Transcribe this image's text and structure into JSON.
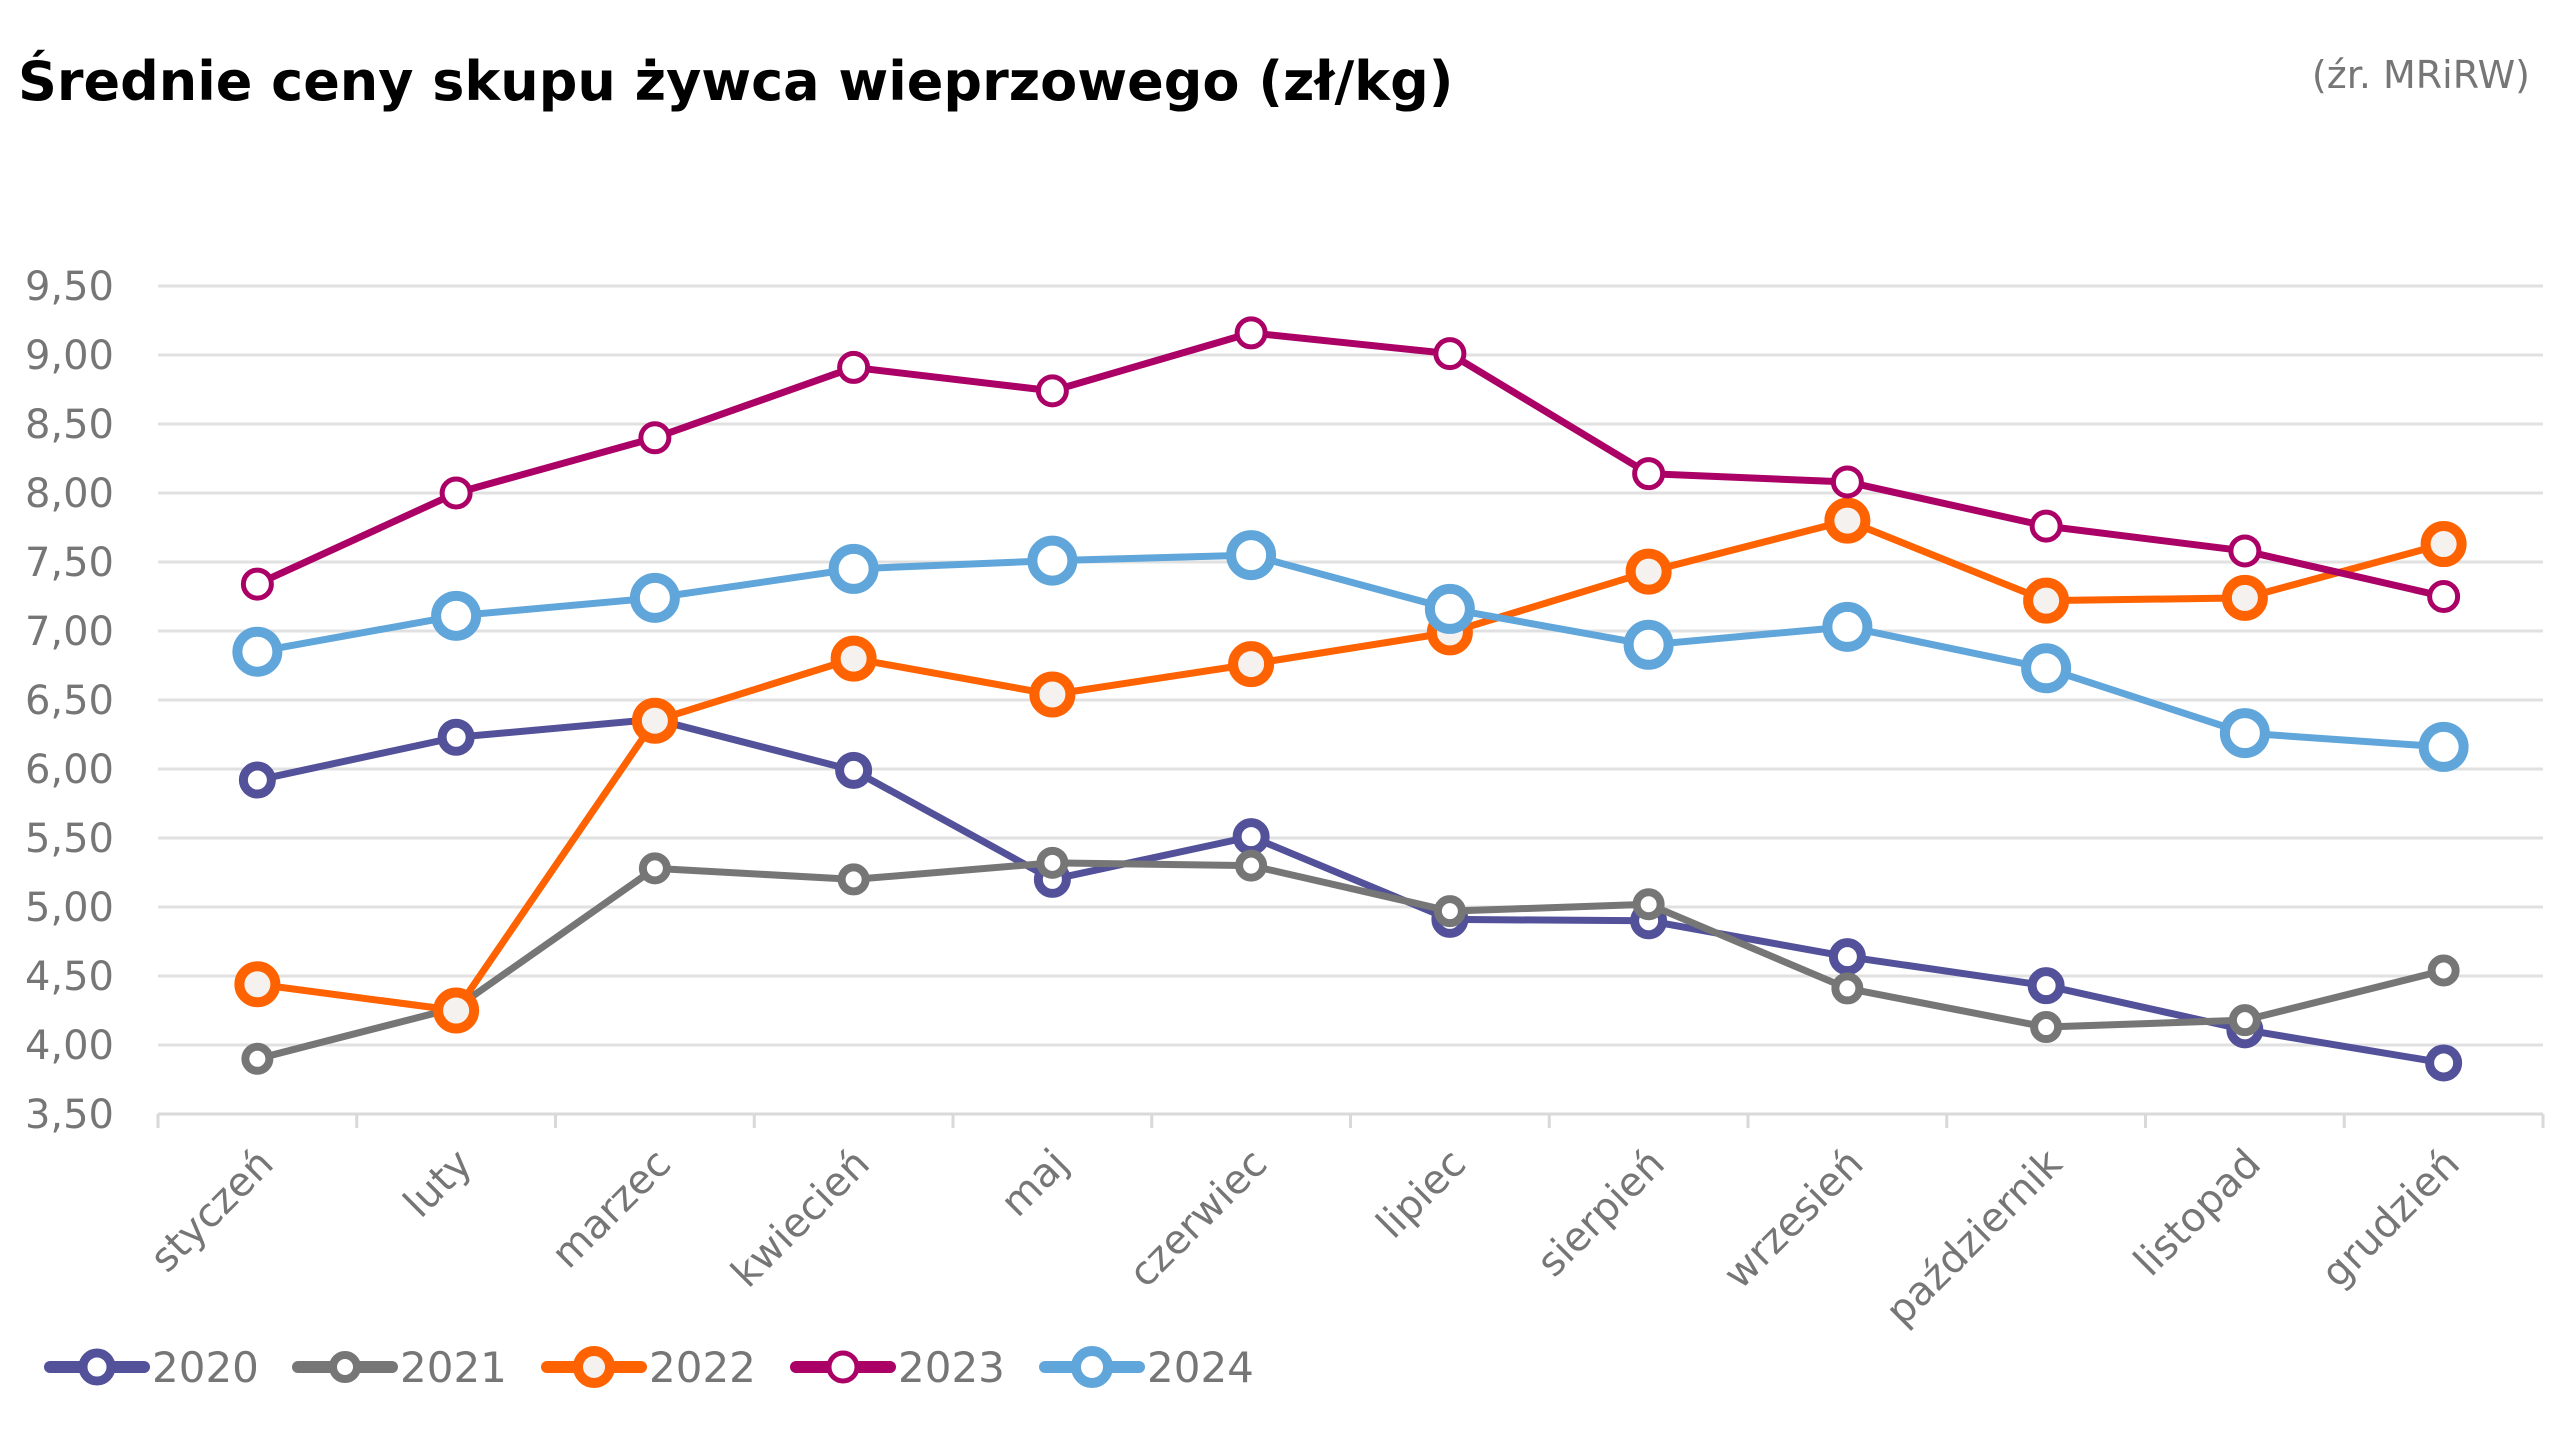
{
  "chart_data": {
    "type": "line",
    "title": "Średnie ceny skupu żywca wieprzowego (zł/kg)",
    "source": "(źr. MRiRW)",
    "xlabel": "",
    "ylabel": "",
    "ylim": [
      3.5,
      9.5
    ],
    "ytick_step": 0.5,
    "yticks": [
      "9,50",
      "9,00",
      "8,50",
      "8,00",
      "7,50",
      "7,00",
      "6,50",
      "6,00",
      "5,50",
      "5,00",
      "4,50",
      "4,00",
      "3,50"
    ],
    "grid": true,
    "legend_position": "bottom-left",
    "categories": [
      "styczeń",
      "luty",
      "marzec",
      "kwiecień",
      "maj",
      "czerwiec",
      "lipiec",
      "sierpień",
      "wrzesień",
      "październik",
      "listopad",
      "grudzień"
    ],
    "series": [
      {
        "name": "2020",
        "color": "#525199",
        "marker": "medium",
        "values": [
          5.92,
          6.23,
          6.36,
          5.99,
          5.2,
          5.51,
          4.91,
          4.9,
          4.64,
          4.43,
          4.11,
          3.87
        ]
      },
      {
        "name": "2021",
        "color": "#767676",
        "marker": "small",
        "values": [
          3.9,
          4.27,
          5.28,
          5.2,
          5.32,
          5.3,
          4.97,
          5.02,
          4.41,
          4.13,
          4.18,
          4.54
        ]
      },
      {
        "name": "2022",
        "color": "#FF6200",
        "marker": "large",
        "values": [
          4.44,
          4.25,
          6.35,
          6.8,
          6.54,
          6.76,
          6.99,
          7.43,
          7.8,
          7.22,
          7.24,
          7.63
        ]
      },
      {
        "name": "2023",
        "color": "#AB0066",
        "marker": "thin",
        "values": [
          7.34,
          8.0,
          8.4,
          8.91,
          8.74,
          9.16,
          9.01,
          8.14,
          8.08,
          7.76,
          7.58,
          7.25
        ]
      },
      {
        "name": "2024",
        "color": "#60A6DA",
        "marker": "xlarge",
        "values": [
          6.85,
          7.11,
          7.24,
          7.45,
          7.51,
          7.55,
          7.16,
          6.9,
          7.03,
          6.73,
          6.26,
          6.16
        ]
      }
    ]
  }
}
